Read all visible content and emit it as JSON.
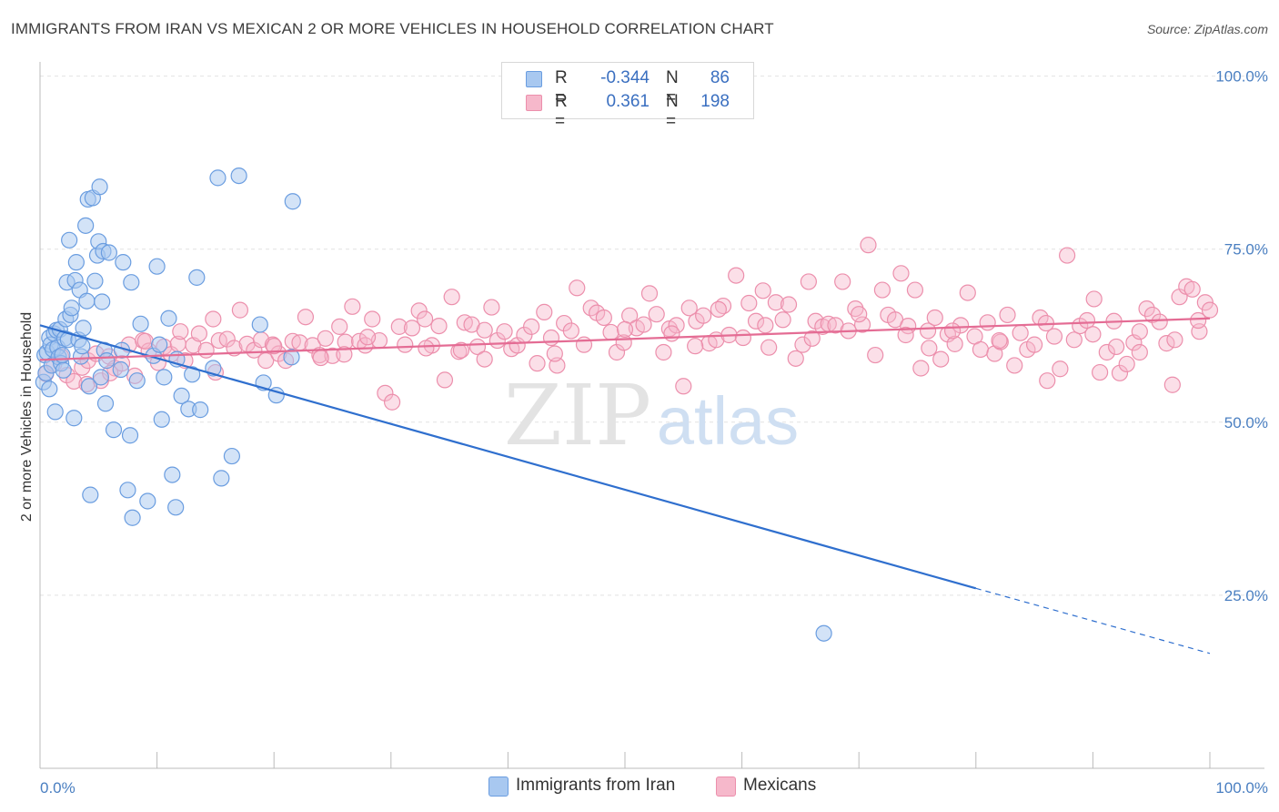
{
  "header": {
    "title": "IMMIGRANTS FROM IRAN VS MEXICAN 2 OR MORE VEHICLES IN HOUSEHOLD CORRELATION CHART",
    "source": "Source: ZipAtlas.com"
  },
  "watermark": {
    "zip": "ZIP",
    "atlas": "atlas"
  },
  "legend": {
    "rows": [
      {
        "r_label": "R =",
        "r_value": "-0.344",
        "n_label": "N =",
        "n_value": "86"
      },
      {
        "r_label": "R =",
        "r_value": "0.361",
        "n_label": "N =",
        "n_value": "198"
      }
    ]
  },
  "bottom_legend": {
    "iran": "Immigrants from Iran",
    "mexicans": "Mexicans"
  },
  "colors": {
    "iran_fill": "#a8c8f0",
    "iran_stroke": "#6a9de0",
    "iran_line": "#2f6fce",
    "mex_fill": "#f6b8cb",
    "mex_stroke": "#ec8fac",
    "mex_line": "#e46c94",
    "tick_text": "#4a7fc1",
    "grid": "#e2e2e2"
  },
  "chart_data": {
    "type": "scatter",
    "title": "IMMIGRANTS FROM IRAN VS MEXICAN 2 OR MORE VEHICLES IN HOUSEHOLD CORRELATION CHART",
    "xlabel": "",
    "ylabel": "2 or more Vehicles in Household",
    "xlim": [
      0,
      100
    ],
    "ylim": [
      0,
      105
    ],
    "x_tick_labels": [
      "0.0%",
      "100.0%"
    ],
    "y_ticks": [
      25,
      50,
      75,
      100
    ],
    "y_tick_labels": [
      "25.0%",
      "50.0%",
      "75.0%",
      "100.0%"
    ],
    "grid": "horizontal dashed",
    "legend_position": "top-center",
    "series": [
      {
        "name": "Immigrants from Iran",
        "r": -0.344,
        "n": 86,
        "trend": {
          "x0": 0,
          "y0": 64.0,
          "x1": 80,
          "y1": 26.0,
          "dashed_to_x": 100,
          "dashed_to_y": 16.6
        },
        "points": [
          [
            0.3,
            55.8
          ],
          [
            0.4,
            59.7
          ],
          [
            0.5,
            57.1
          ],
          [
            0.6,
            60.1
          ],
          [
            0.8,
            62.2
          ],
          [
            0.9,
            61.2
          ],
          [
            1.0,
            58.2
          ],
          [
            1.1,
            60.5
          ],
          [
            1.2,
            62.8
          ],
          [
            1.3,
            51.5
          ],
          [
            1.4,
            63.3
          ],
          [
            1.5,
            60.8
          ],
          [
            1.6,
            59.4
          ],
          [
            1.7,
            63.4
          ],
          [
            1.8,
            58.5
          ],
          [
            1.9,
            59.7
          ],
          [
            2.0,
            57.5
          ],
          [
            2.1,
            62.1
          ],
          [
            2.2,
            64.9
          ],
          [
            2.3,
            70.2
          ],
          [
            2.4,
            61.9
          ],
          [
            2.5,
            76.3
          ],
          [
            2.6,
            65.5
          ],
          [
            2.7,
            66.5
          ],
          [
            2.9,
            50.6
          ],
          [
            3.0,
            70.5
          ],
          [
            3.1,
            73.1
          ],
          [
            3.3,
            61.9
          ],
          [
            3.4,
            69.1
          ],
          [
            3.5,
            59.5
          ],
          [
            3.6,
            61.0
          ],
          [
            3.7,
            63.6
          ],
          [
            3.9,
            78.4
          ],
          [
            4.0,
            67.5
          ],
          [
            4.1,
            82.2
          ],
          [
            4.2,
            55.2
          ],
          [
            4.3,
            39.5
          ],
          [
            4.5,
            82.4
          ],
          [
            4.7,
            70.4
          ],
          [
            4.9,
            74.1
          ],
          [
            5.0,
            76.1
          ],
          [
            5.1,
            84.0
          ],
          [
            5.3,
            67.4
          ],
          [
            5.2,
            56.5
          ],
          [
            5.4,
            74.7
          ],
          [
            5.5,
            60.4
          ],
          [
            5.6,
            52.7
          ],
          [
            5.7,
            58.9
          ],
          [
            5.9,
            74.5
          ],
          [
            6.3,
            48.9
          ],
          [
            6.9,
            57.6
          ],
          [
            7.0,
            60.4
          ],
          [
            7.1,
            73.1
          ],
          [
            7.5,
            40.2
          ],
          [
            7.7,
            48.1
          ],
          [
            7.8,
            70.2
          ],
          [
            7.9,
            36.2
          ],
          [
            8.3,
            56.0
          ],
          [
            8.6,
            64.2
          ],
          [
            9.2,
            38.6
          ],
          [
            9.7,
            59.6
          ],
          [
            10.0,
            72.5
          ],
          [
            10.2,
            61.2
          ],
          [
            10.4,
            50.4
          ],
          [
            10.6,
            56.5
          ],
          [
            11.0,
            65.0
          ],
          [
            11.3,
            42.4
          ],
          [
            11.6,
            37.7
          ],
          [
            11.7,
            59.1
          ],
          [
            12.1,
            53.8
          ],
          [
            12.7,
            51.9
          ],
          [
            13.0,
            56.9
          ],
          [
            13.4,
            70.9
          ],
          [
            13.7,
            51.8
          ],
          [
            14.8,
            57.8
          ],
          [
            15.2,
            85.3
          ],
          [
            15.5,
            41.9
          ],
          [
            16.4,
            45.1
          ],
          [
            17.0,
            85.6
          ],
          [
            18.8,
            64.1
          ],
          [
            19.1,
            55.7
          ],
          [
            20.2,
            53.9
          ],
          [
            21.5,
            59.4
          ],
          [
            21.6,
            81.9
          ],
          [
            67.0,
            19.5
          ],
          [
            0.8,
            54.8
          ]
        ]
      },
      {
        "name": "Mexicans",
        "r": 0.361,
        "n": 198,
        "trend": {
          "x0": 0,
          "y0": 59.0,
          "x1": 100,
          "y1": 65.0
        },
        "points": [
          [
            0.5,
            57.0
          ],
          [
            1.2,
            58.4
          ],
          [
            1.8,
            59.5
          ],
          [
            2.3,
            56.8
          ],
          [
            2.9,
            55.9
          ],
          [
            3.6,
            57.9
          ],
          [
            4.1,
            58.9
          ],
          [
            4.8,
            59.9
          ],
          [
            5.2,
            56.0
          ],
          [
            5.9,
            59.5
          ],
          [
            6.4,
            57.8
          ],
          [
            7.0,
            58.5
          ],
          [
            7.6,
            61.2
          ],
          [
            8.1,
            56.7
          ],
          [
            8.8,
            61.8
          ],
          [
            9.3,
            60.3
          ],
          [
            10.1,
            58.6
          ],
          [
            10.6,
            60.9
          ],
          [
            11.2,
            59.8
          ],
          [
            11.8,
            61.3
          ],
          [
            12.4,
            58.9
          ],
          [
            13.1,
            61.1
          ],
          [
            13.6,
            62.8
          ],
          [
            14.2,
            60.4
          ],
          [
            14.8,
            64.9
          ],
          [
            15.3,
            61.8
          ],
          [
            16.0,
            62.0
          ],
          [
            16.6,
            60.7
          ],
          [
            17.1,
            66.2
          ],
          [
            17.7,
            61.3
          ],
          [
            18.3,
            60.4
          ],
          [
            18.9,
            61.9
          ],
          [
            19.3,
            58.9
          ],
          [
            19.9,
            61.2
          ],
          [
            20.4,
            59.9
          ],
          [
            21.0,
            58.9
          ],
          [
            21.6,
            61.7
          ],
          [
            22.2,
            61.5
          ],
          [
            22.7,
            65.2
          ],
          [
            23.3,
            61.1
          ],
          [
            23.9,
            59.7
          ],
          [
            24.4,
            62.1
          ],
          [
            25.0,
            59.6
          ],
          [
            25.6,
            63.8
          ],
          [
            26.1,
            61.6
          ],
          [
            26.7,
            66.7
          ],
          [
            27.3,
            61.7
          ],
          [
            27.8,
            61.1
          ],
          [
            28.4,
            64.9
          ],
          [
            29.0,
            61.8
          ],
          [
            29.5,
            54.2
          ],
          [
            30.1,
            52.9
          ],
          [
            30.7,
            63.8
          ],
          [
            31.2,
            61.2
          ],
          [
            31.8,
            63.6
          ],
          [
            32.4,
            66.1
          ],
          [
            32.9,
            64.9
          ],
          [
            33.5,
            61.1
          ],
          [
            34.1,
            63.9
          ],
          [
            34.6,
            56.1
          ],
          [
            35.2,
            68.1
          ],
          [
            35.8,
            60.2
          ],
          [
            36.3,
            64.4
          ],
          [
            36.9,
            64.1
          ],
          [
            37.4,
            60.9
          ],
          [
            38.0,
            59.1
          ],
          [
            38.6,
            66.6
          ],
          [
            39.1,
            61.8
          ],
          [
            39.7,
            63.1
          ],
          [
            40.3,
            60.6
          ],
          [
            40.8,
            61.1
          ],
          [
            41.4,
            62.6
          ],
          [
            42.0,
            63.8
          ],
          [
            42.5,
            58.5
          ],
          [
            43.1,
            65.9
          ],
          [
            43.7,
            62.2
          ],
          [
            44.2,
            58.2
          ],
          [
            44.8,
            64.3
          ],
          [
            45.4,
            63.2
          ],
          [
            45.9,
            69.4
          ],
          [
            46.5,
            61.2
          ],
          [
            47.1,
            66.5
          ],
          [
            47.6,
            65.8
          ],
          [
            48.2,
            65.1
          ],
          [
            48.8,
            63.0
          ],
          [
            49.3,
            60.1
          ],
          [
            49.9,
            61.5
          ],
          [
            50.4,
            65.4
          ],
          [
            51.0,
            63.6
          ],
          [
            51.6,
            64.1
          ],
          [
            52.1,
            68.6
          ],
          [
            52.7,
            65.6
          ],
          [
            53.3,
            60.1
          ],
          [
            53.8,
            63.5
          ],
          [
            54.4,
            64.0
          ],
          [
            55.0,
            55.2
          ],
          [
            55.5,
            66.5
          ],
          [
            56.1,
            64.6
          ],
          [
            56.7,
            65.4
          ],
          [
            57.2,
            61.4
          ],
          [
            57.8,
            61.9
          ],
          [
            58.4,
            66.8
          ],
          [
            58.9,
            62.6
          ],
          [
            59.5,
            71.2
          ],
          [
            60.1,
            62.2
          ],
          [
            60.6,
            67.2
          ],
          [
            61.2,
            64.6
          ],
          [
            61.8,
            69.0
          ],
          [
            62.3,
            60.8
          ],
          [
            62.9,
            67.3
          ],
          [
            63.5,
            64.8
          ],
          [
            64.0,
            67.0
          ],
          [
            64.6,
            59.2
          ],
          [
            65.2,
            61.2
          ],
          [
            65.7,
            70.3
          ],
          [
            66.3,
            64.6
          ],
          [
            66.9,
            63.8
          ],
          [
            67.4,
            64.2
          ],
          [
            68.0,
            64.0
          ],
          [
            68.6,
            70.3
          ],
          [
            69.1,
            63.2
          ],
          [
            69.7,
            66.4
          ],
          [
            70.3,
            64.1
          ],
          [
            70.8,
            75.6
          ],
          [
            71.4,
            59.7
          ],
          [
            72.0,
            69.1
          ],
          [
            72.5,
            65.5
          ],
          [
            73.1,
            64.8
          ],
          [
            73.6,
            71.5
          ],
          [
            74.2,
            63.9
          ],
          [
            74.8,
            69.1
          ],
          [
            75.3,
            57.8
          ],
          [
            75.9,
            63.2
          ],
          [
            76.5,
            65.1
          ],
          [
            77.0,
            59.1
          ],
          [
            77.6,
            62.7
          ],
          [
            78.2,
            61.3
          ],
          [
            78.7,
            64.0
          ],
          [
            79.3,
            68.7
          ],
          [
            79.9,
            62.4
          ],
          [
            80.4,
            60.5
          ],
          [
            81.0,
            64.4
          ],
          [
            81.6,
            59.9
          ],
          [
            82.1,
            61.6
          ],
          [
            82.7,
            65.5
          ],
          [
            83.3,
            58.2
          ],
          [
            83.8,
            62.9
          ],
          [
            84.4,
            60.5
          ],
          [
            85.0,
            61.2
          ],
          [
            85.5,
            65.1
          ],
          [
            86.1,
            56.0
          ],
          [
            86.7,
            62.4
          ],
          [
            87.2,
            57.7
          ],
          [
            87.8,
            74.1
          ],
          [
            88.4,
            61.9
          ],
          [
            88.9,
            63.9
          ],
          [
            89.5,
            64.7
          ],
          [
            90.1,
            67.8
          ],
          [
            90.6,
            57.2
          ],
          [
            91.2,
            60.1
          ],
          [
            91.8,
            64.6
          ],
          [
            92.3,
            57.1
          ],
          [
            92.9,
            58.4
          ],
          [
            93.5,
            61.5
          ],
          [
            94.0,
            60.1
          ],
          [
            94.6,
            66.4
          ],
          [
            95.1,
            65.5
          ],
          [
            95.7,
            64.5
          ],
          [
            96.3,
            61.4
          ],
          [
            96.8,
            55.4
          ],
          [
            97.4,
            68.1
          ],
          [
            98.0,
            69.6
          ],
          [
            98.5,
            69.2
          ],
          [
            99.1,
            63.1
          ],
          [
            99.6,
            67.3
          ],
          [
            100.0,
            66.2
          ],
          [
            4.0,
            55.5
          ],
          [
            6.0,
            57.1
          ],
          [
            9.0,
            61.7
          ],
          [
            15.0,
            57.2
          ],
          [
            20.0,
            61.0
          ],
          [
            24.0,
            59.3
          ],
          [
            28.0,
            62.3
          ],
          [
            33.0,
            60.7
          ],
          [
            38.0,
            63.3
          ],
          [
            44.0,
            59.9
          ],
          [
            50.0,
            63.4
          ],
          [
            54.0,
            62.8
          ],
          [
            58.0,
            66.3
          ],
          [
            62.0,
            64.0
          ],
          [
            66.0,
            62.1
          ],
          [
            70.0,
            65.6
          ],
          [
            74.0,
            62.6
          ],
          [
            78.0,
            63.2
          ],
          [
            82.0,
            61.8
          ],
          [
            86.0,
            64.3
          ],
          [
            90.0,
            62.7
          ],
          [
            94.0,
            63.1
          ],
          [
            97.0,
            61.9
          ],
          [
            99.0,
            64.7
          ],
          [
            12.0,
            63.1
          ],
          [
            36.0,
            60.4
          ],
          [
            56.0,
            61.0
          ],
          [
            76.0,
            60.7
          ],
          [
            92.0,
            60.9
          ],
          [
            26.0,
            59.8
          ]
        ]
      }
    ]
  }
}
